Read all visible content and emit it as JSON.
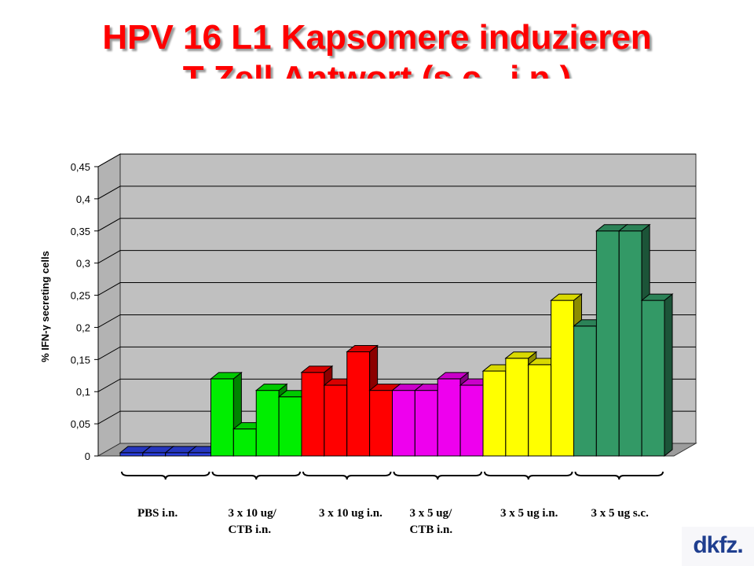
{
  "title": {
    "line1": "HPV 16 L1 Kapsomere induzieren",
    "line2": "T Zell Antwort (s.c., i.n.)"
  },
  "logo": {
    "text": "dkfz."
  },
  "chart_data": {
    "type": "bar",
    "ylabel": "% IFN-γ secreting cells",
    "ylim": [
      0,
      0.45
    ],
    "yticks": [
      "0",
      "0,05",
      "0,1",
      "0,15",
      "0,2",
      "0,25",
      "0,3",
      "0,35",
      "0,4",
      "0,45"
    ],
    "grid": true,
    "groups": [
      {
        "label_lines": [
          "PBS i.n."
        ],
        "color": "#2b3fe0",
        "values": [
          0.005,
          0.005,
          0.005,
          0.005
        ]
      },
      {
        "label_lines": [
          "3 x 10 ug/",
          "CTB i.n."
        ],
        "color": "#00ee00",
        "values": [
          0.12,
          0.042,
          0.102,
          0.092
        ]
      },
      {
        "label_lines": [
          "3 x 10 ug i.n."
        ],
        "color": "#ff0000",
        "values": [
          0.13,
          0.11,
          0.162,
          0.102
        ]
      },
      {
        "label_lines": [
          "3 x 5 ug/",
          "CTB i.n."
        ],
        "color": "#ee00ee",
        "values": [
          0.102,
          0.102,
          0.12,
          0.11
        ]
      },
      {
        "label_lines": [
          "3 x 5 ug i.n."
        ],
        "color": "#ffff00",
        "values": [
          0.132,
          0.152,
          0.142,
          0.242
        ]
      },
      {
        "label_lines": [
          "3 x 5 ug s.c."
        ],
        "color": "#339966",
        "values": [
          0.202,
          0.35,
          0.35,
          0.242
        ]
      }
    ]
  }
}
